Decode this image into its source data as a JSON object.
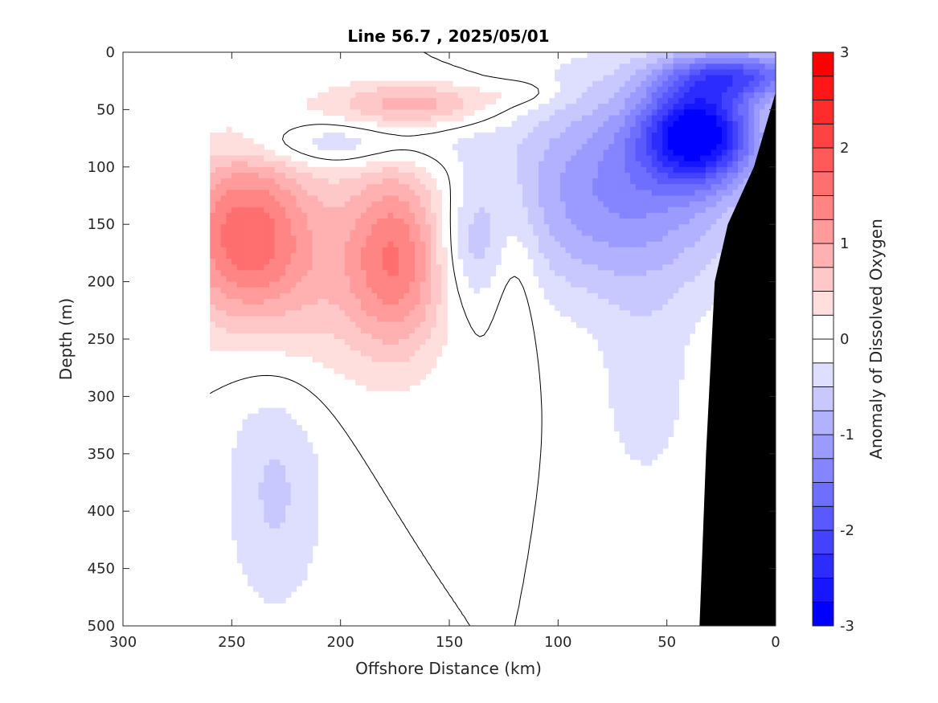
{
  "chart_data": {
    "type": "heatmap",
    "title": "Line 56.7 , 2025/05/01",
    "xlabel": "Offshore Distance (km)",
    "ylabel": "Depth (m)",
    "colorbar_label": "Anomaly of Dissolved Oxygen",
    "x_ticks": [
      300,
      250,
      200,
      150,
      100,
      50,
      0
    ],
    "y_ticks": [
      0,
      50,
      100,
      150,
      200,
      250,
      300,
      350,
      400,
      450,
      500
    ],
    "colorbar_ticks": [
      3,
      2,
      1,
      0,
      -1,
      -2,
      -3
    ],
    "xlim": [
      300,
      0
    ],
    "ylim": [
      0,
      500
    ],
    "clim": [
      -3,
      3
    ],
    "contour_levels": [
      -3,
      -2.75,
      -2.5,
      -2.25,
      -2,
      -1.75,
      -1.5,
      -1.25,
      -1,
      -0.75,
      -0.5,
      -0.25,
      0,
      0.25,
      0.5,
      0.75,
      1,
      1.25,
      1.5,
      1.75,
      2,
      2.25,
      2.5,
      2.75,
      3
    ],
    "colormap": {
      "negative": "#0000ff",
      "zero": "#ffffff",
      "positive": "#ff0000"
    },
    "features": [
      {
        "name": "surface positive anomaly",
        "x": 165,
        "y": 45,
        "value": 0.75
      },
      {
        "name": "western subsurface positive core",
        "x": 240,
        "y": 150,
        "value": 1.5
      },
      {
        "name": "central positive core",
        "x": 175,
        "y": 170,
        "value": 1.5
      },
      {
        "name": "nearshore negative core",
        "x": 35,
        "y": 65,
        "value": -2.5
      },
      {
        "name": "offshore negative band",
        "x": 200,
        "y": 80,
        "value": -0.5
      },
      {
        "name": "deep western negative patch",
        "x": 230,
        "y": 380,
        "value": -0.5
      }
    ],
    "bathymetry": [
      [
        35,
        500
      ],
      [
        32,
        350
      ],
      [
        28,
        200
      ],
      [
        22,
        150
      ],
      [
        10,
        100
      ],
      [
        0,
        35
      ]
    ]
  }
}
